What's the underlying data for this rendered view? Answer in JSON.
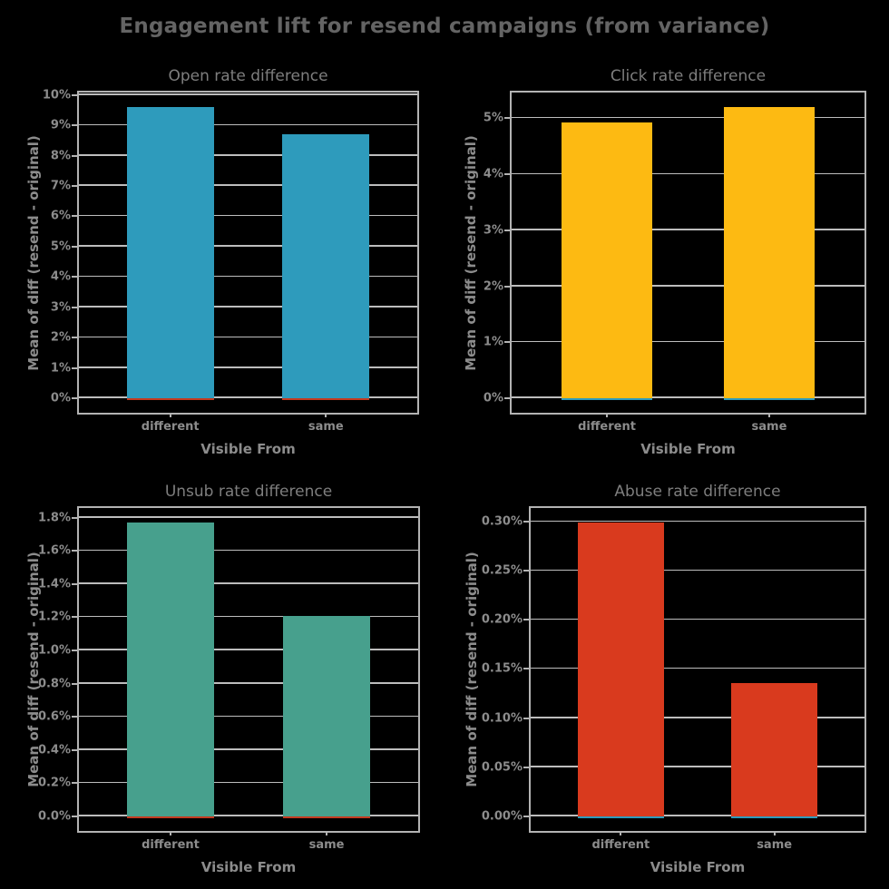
{
  "figure": {
    "title": "Engagement lift for resend campaigns (from variance)",
    "background_color": "#000000",
    "title_color": "#646464"
  },
  "style": {
    "spine_color": "#b3b3b3",
    "grid_color": "#bdbdbd",
    "tick_label_color": "#8c8c8c",
    "subplot_title_color": "#7e7e7e",
    "axis_label_color": "#8c8c8c"
  },
  "chart_data": [
    {
      "type": "bar",
      "title": "Open rate difference",
      "xlabel": "Visible From",
      "ylabel": "Mean of diff (resend - original)",
      "categories": [
        "different",
        "same"
      ],
      "values": [
        9.6,
        8.7
      ],
      "value_unit": "percent",
      "bar_color": "#2E9BBC",
      "zero_line_color": "#c43a20",
      "grid": true,
      "ylim": [
        -0.48,
        10.08
      ],
      "yticks": [
        0,
        1,
        2,
        3,
        4,
        5,
        6,
        7,
        8,
        9,
        10
      ],
      "ytick_labels": [
        "0%",
        "1%",
        "2%",
        "3%",
        "4%",
        "5%",
        "6%",
        "7%",
        "8%",
        "9%",
        "10%"
      ]
    },
    {
      "type": "bar",
      "title": "Click rate difference",
      "xlabel": "Visible From",
      "ylabel": "Mean of diff (resend - original)",
      "categories": [
        "different",
        "same"
      ],
      "values": [
        4.93,
        5.2
      ],
      "value_unit": "percent",
      "bar_color": "#FDBA12",
      "zero_line_color": "#2e9bbc",
      "grid": true,
      "ylim": [
        -0.26,
        5.46
      ],
      "yticks": [
        0,
        1,
        2,
        3,
        4,
        5
      ],
      "ytick_labels": [
        "0%",
        "1%",
        "2%",
        "3%",
        "4%",
        "5%"
      ]
    },
    {
      "type": "bar",
      "title": "Unsub rate difference",
      "xlabel": "Visible From",
      "ylabel": "Mean of diff (resend - original)",
      "categories": [
        "different",
        "same"
      ],
      "values": [
        1.77,
        1.21
      ],
      "value_unit": "percent",
      "bar_color": "#47A08D",
      "zero_line_color": "#c43a20",
      "grid": true,
      "ylim": [
        -0.0885,
        1.8585
      ],
      "yticks": [
        0,
        0.2,
        0.4,
        0.6,
        0.8,
        1.0,
        1.2,
        1.4,
        1.6,
        1.8
      ],
      "ytick_labels": [
        "0.0%",
        "0.2%",
        "0.4%",
        "0.6%",
        "0.8%",
        "1.0%",
        "1.2%",
        "1.4%",
        "1.6%",
        "1.8%"
      ]
    },
    {
      "type": "bar",
      "title": "Abuse rate difference",
      "xlabel": "Visible From",
      "ylabel": "Mean of diff (resend - original)",
      "categories": [
        "different",
        "same"
      ],
      "values": [
        0.299,
        0.136
      ],
      "value_unit": "percent",
      "bar_color": "#D93A1E",
      "zero_line_color": "#2e9bbc",
      "grid": true,
      "ylim": [
        -0.01495,
        0.31395
      ],
      "yticks": [
        0,
        0.05,
        0.1,
        0.15,
        0.2,
        0.25,
        0.3
      ],
      "ytick_labels": [
        "0.00%",
        "0.05%",
        "0.10%",
        "0.15%",
        "0.20%",
        "0.25%",
        "0.30%"
      ]
    }
  ]
}
